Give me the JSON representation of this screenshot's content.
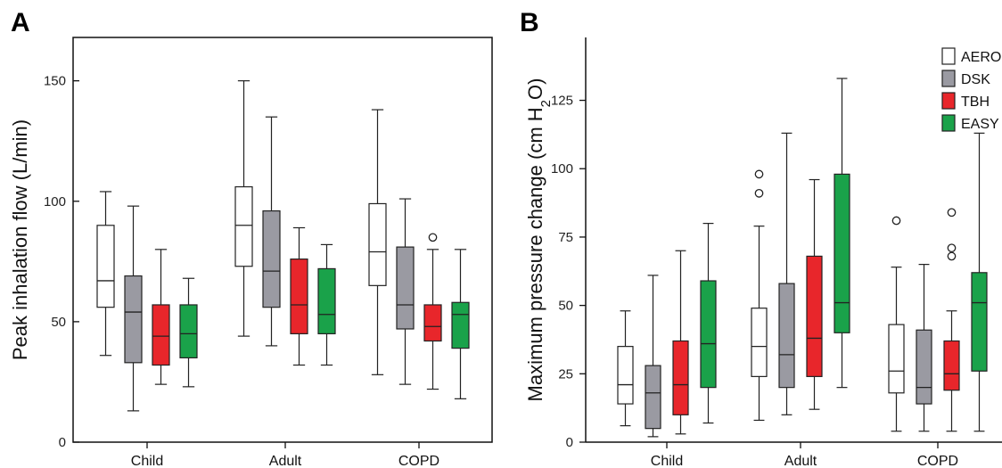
{
  "chart_data": [
    {
      "type": "box",
      "panel": "A",
      "xlabel": "",
      "ylabel": "Peak inhalation flow (L/min)",
      "ylim": [
        0,
        168
      ],
      "yticks": [
        0,
        50,
        100,
        150
      ],
      "categories": [
        "Child",
        "Adult",
        "COPD"
      ],
      "series": [
        {
          "name": "AERO",
          "color": "#ffffff",
          "boxes": [
            {
              "min": 36,
              "q1": 56,
              "median": 67,
              "q3": 90,
              "max": 104,
              "outliers": []
            },
            {
              "min": 44,
              "q1": 73,
              "median": 90,
              "q3": 106,
              "max": 150,
              "outliers": []
            },
            {
              "min": 28,
              "q1": 65,
              "median": 79,
              "q3": 99,
              "max": 138,
              "outliers": []
            }
          ]
        },
        {
          "name": "DSK",
          "color": "#9a9aa2",
          "boxes": [
            {
              "min": 13,
              "q1": 33,
              "median": 54,
              "q3": 69,
              "max": 98,
              "outliers": []
            },
            {
              "min": 40,
              "q1": 56,
              "median": 71,
              "q3": 96,
              "max": 135,
              "outliers": []
            },
            {
              "min": 24,
              "q1": 47,
              "median": 57,
              "q3": 81,
              "max": 101,
              "outliers": []
            }
          ]
        },
        {
          "name": "TBH",
          "color": "#e8262b",
          "boxes": [
            {
              "min": 24,
              "q1": 32,
              "median": 44,
              "q3": 57,
              "max": 80,
              "outliers": []
            },
            {
              "min": 32,
              "q1": 45,
              "median": 57,
              "q3": 76,
              "max": 89,
              "outliers": []
            },
            {
              "min": 22,
              "q1": 42,
              "median": 48,
              "q3": 57,
              "max": 80,
              "outliers": [
                85
              ]
            }
          ]
        },
        {
          "name": "EASY",
          "color": "#1aa24a",
          "boxes": [
            {
              "min": 23,
              "q1": 35,
              "median": 45,
              "q3": 57,
              "max": 68,
              "outliers": []
            },
            {
              "min": 32,
              "q1": 45,
              "median": 53,
              "q3": 72,
              "max": 82,
              "outliers": []
            },
            {
              "min": 18,
              "q1": 39,
              "median": 53,
              "q3": 58,
              "max": 80,
              "outliers": []
            }
          ]
        }
      ]
    },
    {
      "type": "box",
      "panel": "B",
      "xlabel": "",
      "ylabel": "Maximum pressure change (cm H2O)",
      "ylim": [
        0,
        148
      ],
      "yticks": [
        0,
        25,
        50,
        75,
        100,
        125
      ],
      "categories": [
        "Child",
        "Adult",
        "COPD"
      ],
      "legend": {
        "position": "top-right",
        "entries": [
          "AERO",
          "DSK",
          "TBH",
          "EASY"
        ]
      },
      "series": [
        {
          "name": "AERO",
          "color": "#ffffff",
          "boxes": [
            {
              "min": 6,
              "q1": 14,
              "median": 21,
              "q3": 35,
              "max": 48,
              "outliers": []
            },
            {
              "min": 8,
              "q1": 24,
              "median": 35,
              "q3": 49,
              "max": 79,
              "outliers": [
                91,
                98
              ]
            },
            {
              "min": 4,
              "q1": 18,
              "median": 26,
              "q3": 43,
              "max": 64,
              "outliers": [
                81
              ]
            }
          ]
        },
        {
          "name": "DSK",
          "color": "#9a9aa2",
          "boxes": [
            {
              "min": 2,
              "q1": 5,
              "median": 18,
              "q3": 28,
              "max": 61,
              "outliers": []
            },
            {
              "min": 10,
              "q1": 20,
              "median": 32,
              "q3": 58,
              "max": 113,
              "outliers": []
            },
            {
              "min": 4,
              "q1": 14,
              "median": 20,
              "q3": 41,
              "max": 65,
              "outliers": []
            }
          ]
        },
        {
          "name": "TBH",
          "color": "#e8262b",
          "boxes": [
            {
              "min": 3,
              "q1": 10,
              "median": 21,
              "q3": 37,
              "max": 70,
              "outliers": []
            },
            {
              "min": 12,
              "q1": 24,
              "median": 38,
              "q3": 68,
              "max": 96,
              "outliers": []
            },
            {
              "min": 4,
              "q1": 19,
              "median": 25,
              "q3": 37,
              "max": 48,
              "outliers": [
                68,
                71,
                84
              ]
            }
          ]
        },
        {
          "name": "EASY",
          "color": "#1aa24a",
          "boxes": [
            {
              "min": 7,
              "q1": 20,
              "median": 36,
              "q3": 59,
              "max": 80,
              "outliers": []
            },
            {
              "min": 20,
              "q1": 40,
              "median": 51,
              "q3": 98,
              "max": 133,
              "outliers": []
            },
            {
              "min": 4,
              "q1": 26,
              "median": 51,
              "q3": 62,
              "max": 113,
              "outliers": []
            }
          ]
        }
      ]
    }
  ]
}
